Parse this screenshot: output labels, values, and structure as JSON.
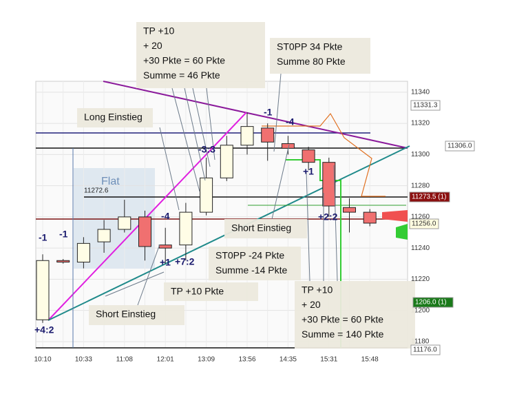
{
  "chart_data": {
    "type": "candlestick",
    "categories": [
      "10:10",
      null,
      "10:33",
      null,
      "11:08",
      null,
      "12:01",
      null,
      "13:09",
      null,
      "13:56",
      null,
      "14:35",
      null,
      "15:31",
      null,
      "15:48"
    ],
    "open": [
      11194,
      11232,
      11231,
      11244,
      11252,
      11260,
      11242,
      11242,
      11263,
      11285,
      11306,
      11317,
      11307,
      11303,
      11295,
      11266,
      11263
    ],
    "high": [
      11236,
      11233,
      11247,
      11258,
      11271,
      11264,
      11253,
      11269,
      11298,
      11312,
      11327,
      11320,
      11312,
      11305,
      11298,
      11272,
      11265
    ],
    "low": [
      11192,
      11230,
      11227,
      11237,
      11250,
      11232,
      11230,
      11232,
      11261,
      11283,
      11300,
      11296,
      11300,
      11290,
      11260,
      11250,
      11254
    ],
    "close": [
      11232,
      11231,
      11243,
      11252,
      11260,
      11241,
      11240,
      11263,
      11285,
      11306,
      11318,
      11308,
      11304,
      11295,
      11267,
      11263,
      11256
    ],
    "up_color": "#fffde6",
    "down_color": "#f07070",
    "ylim": [
      11176,
      11347
    ],
    "yticks": [
      11180,
      11200,
      11220,
      11240,
      11260,
      11280,
      11300,
      11320,
      11340
    ],
    "grid": true,
    "price_labels": [
      "11331.3",
      "11306.0",
      "11273.5 (1)",
      "11256.0",
      "1206.0 (1)",
      "11176.0"
    ],
    "level_label": "11272.6",
    "zone_label": "Flat",
    "signals": [
      "-1",
      "-1",
      "-4",
      "-3:3",
      "-1",
      "-4",
      "+1",
      "+2:2",
      "+4:2",
      "+1",
      "+7:2"
    ],
    "annotations": [
      [
        "TP +10",
        "+ 20",
        "+30 Pkte = 60 Pkte",
        "Summe  = 46 Pkte"
      ],
      [
        "ST0PP 34 Pkte",
        "Summe  80 Pkte"
      ],
      [
        "Long Einstieg"
      ],
      [
        "Short Einstieg"
      ],
      [
        "ST0PP  -24 Pkte",
        "Summe  -14 Pkte"
      ],
      [
        "TP +10 Pkte"
      ],
      [
        "Short Einstieg"
      ],
      [
        "TP +10",
        "+ 20",
        "+30 Pkte = 60 Pkte",
        "Summe  = 140 Pkte"
      ]
    ]
  }
}
